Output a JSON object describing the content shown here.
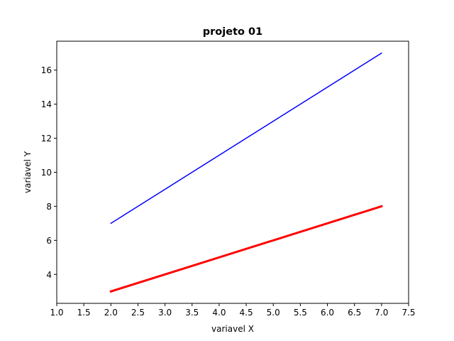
{
  "chart_data": {
    "type": "line",
    "title": "projeto 01",
    "xlabel": "variavel X",
    "ylabel": "variavel Y",
    "xlim": [
      1.0,
      7.5
    ],
    "ylim": [
      2.3,
      17.7
    ],
    "xticks": [
      1.0,
      1.5,
      2.0,
      2.5,
      3.0,
      3.5,
      4.0,
      4.5,
      5.0,
      5.5,
      6.0,
      6.5,
      7.0,
      7.5
    ],
    "xtick_labels": [
      "1.0",
      "1.5",
      "2.0",
      "2.5",
      "3.0",
      "3.5",
      "4.0",
      "4.5",
      "5.0",
      "5.5",
      "6.0",
      "6.5",
      "7.0",
      "7.5"
    ],
    "yticks": [
      4,
      6,
      8,
      10,
      12,
      14,
      16
    ],
    "ytick_labels": [
      "4",
      "6",
      "8",
      "10",
      "12",
      "14",
      "16"
    ],
    "grid": false,
    "series": [
      {
        "x": [
          2,
          7
        ],
        "y": [
          7,
          17
        ],
        "color": "#0000ff",
        "linewidth": "thin"
      },
      {
        "x": [
          2,
          7
        ],
        "y": [
          3,
          8
        ],
        "color": "#ff0000",
        "linewidth": "thick"
      }
    ]
  }
}
